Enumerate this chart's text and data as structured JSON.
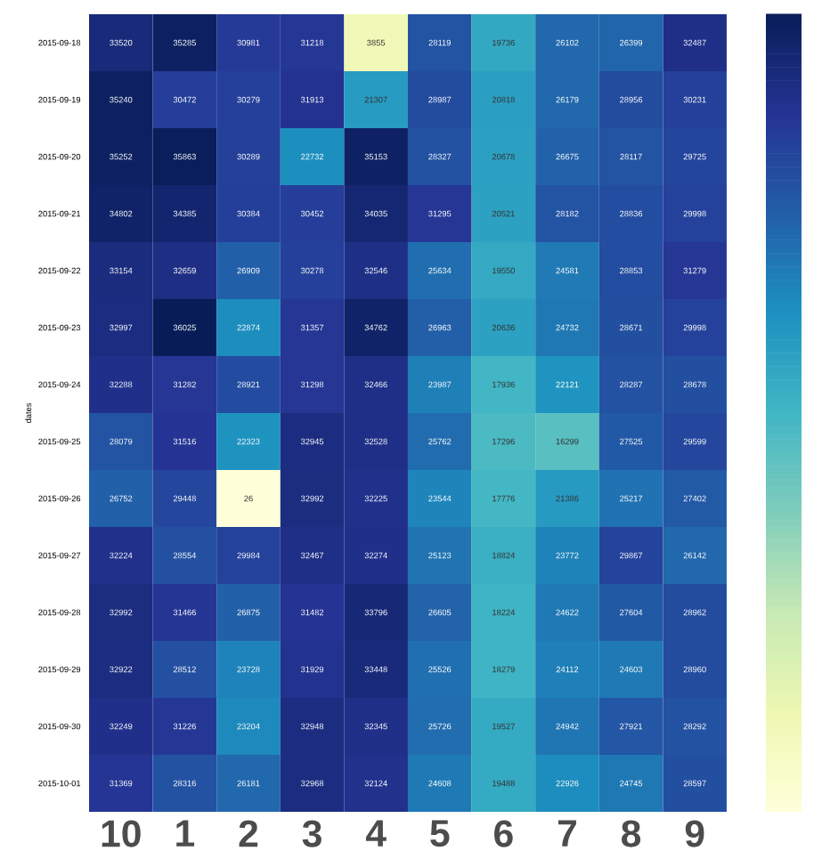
{
  "chart_data": {
    "type": "heatmap",
    "ylabel": "dates",
    "categories": [
      "10",
      "1",
      "2",
      "3",
      "4",
      "5",
      "6",
      "7",
      "8",
      "9"
    ],
    "y_categories": [
      "2015-09-18",
      "2015-09-19",
      "2015-09-20",
      "2015-09-21",
      "2015-09-22",
      "2015-09-23",
      "2015-09-24",
      "2015-09-25",
      "2015-09-26",
      "2015-09-27",
      "2015-09-28",
      "2015-09-29",
      "2015-09-30",
      "2015-10-01"
    ],
    "cells": [
      [
        33520,
        35285,
        30981,
        31218,
        3855,
        28119,
        19736,
        26102,
        26399,
        32487
      ],
      [
        35240,
        30472,
        30279,
        31913,
        21307,
        28987,
        20818,
        26179,
        28956,
        30231
      ],
      [
        35252,
        35863,
        30289,
        22732,
        35153,
        28327,
        20678,
        26675,
        28117,
        29725
      ],
      [
        34802,
        34385,
        30384,
        30452,
        34035,
        31295,
        20521,
        28182,
        28836,
        29998
      ],
      [
        33154,
        32659,
        26909,
        30278,
        32546,
        25634,
        19550,
        24581,
        28853,
        31279
      ],
      [
        32997,
        36025,
        22874,
        31357,
        34762,
        26963,
        20636,
        24732,
        28671,
        29998
      ],
      [
        32288,
        31282,
        28921,
        31298,
        32466,
        23987,
        17936,
        22121,
        28287,
        28678
      ],
      [
        28079,
        31516,
        22323,
        32945,
        32528,
        25762,
        17296,
        16299,
        27525,
        29599
      ],
      [
        26752,
        29448,
        26,
        32992,
        32225,
        23544,
        17776,
        21386,
        25217,
        27402
      ],
      [
        32224,
        28554,
        29984,
        32467,
        32274,
        25123,
        18824,
        23772,
        29867,
        26142
      ],
      [
        32992,
        31466,
        26875,
        31482,
        33796,
        26605,
        18224,
        24622,
        27604,
        28962
      ],
      [
        32922,
        28512,
        23728,
        31929,
        33448,
        25526,
        18279,
        24112,
        24603,
        28960
      ],
      [
        32249,
        31226,
        23204,
        32948,
        32345,
        25726,
        19527,
        24942,
        27921,
        28292
      ],
      [
        31369,
        28316,
        26181,
        32968,
        32124,
        24608,
        19488,
        22926,
        24745,
        28597
      ]
    ],
    "data_labels": true
  }
}
